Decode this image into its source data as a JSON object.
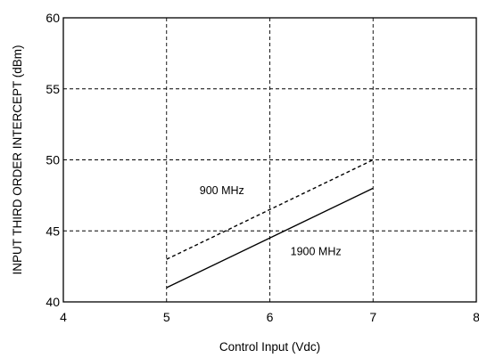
{
  "chart_data": {
    "type": "line",
    "title": "",
    "xlabel": "Control Input (Vdc)",
    "ylabel": "INPUT THIRD ORDER INTERCEPT (dBm)",
    "xlim": [
      4,
      8
    ],
    "ylim": [
      40,
      60
    ],
    "x_ticks": [
      4,
      5,
      6,
      7,
      8
    ],
    "y_ticks": [
      40,
      45,
      50,
      55,
      60
    ],
    "x_tick_labels": [
      "4",
      "5",
      "6",
      "7",
      "8"
    ],
    "y_tick_labels": [
      "40",
      "45",
      "50",
      "55",
      "60"
    ],
    "grid": "dashed",
    "legend": "none",
    "series": [
      {
        "name": "900 MHz",
        "style": "dashed",
        "color": "#000000",
        "x": [
          5,
          7
        ],
        "y": [
          43,
          50
        ]
      },
      {
        "name": "1900 MHz",
        "style": "solid",
        "color": "#000000",
        "x": [
          5,
          7
        ],
        "y": [
          41,
          48
        ]
      }
    ],
    "annotations": [
      {
        "text": "900 MHz",
        "x": 5.32,
        "y": 47.6
      },
      {
        "text": "1900 MHz",
        "x": 6.2,
        "y": 43.3
      }
    ]
  }
}
